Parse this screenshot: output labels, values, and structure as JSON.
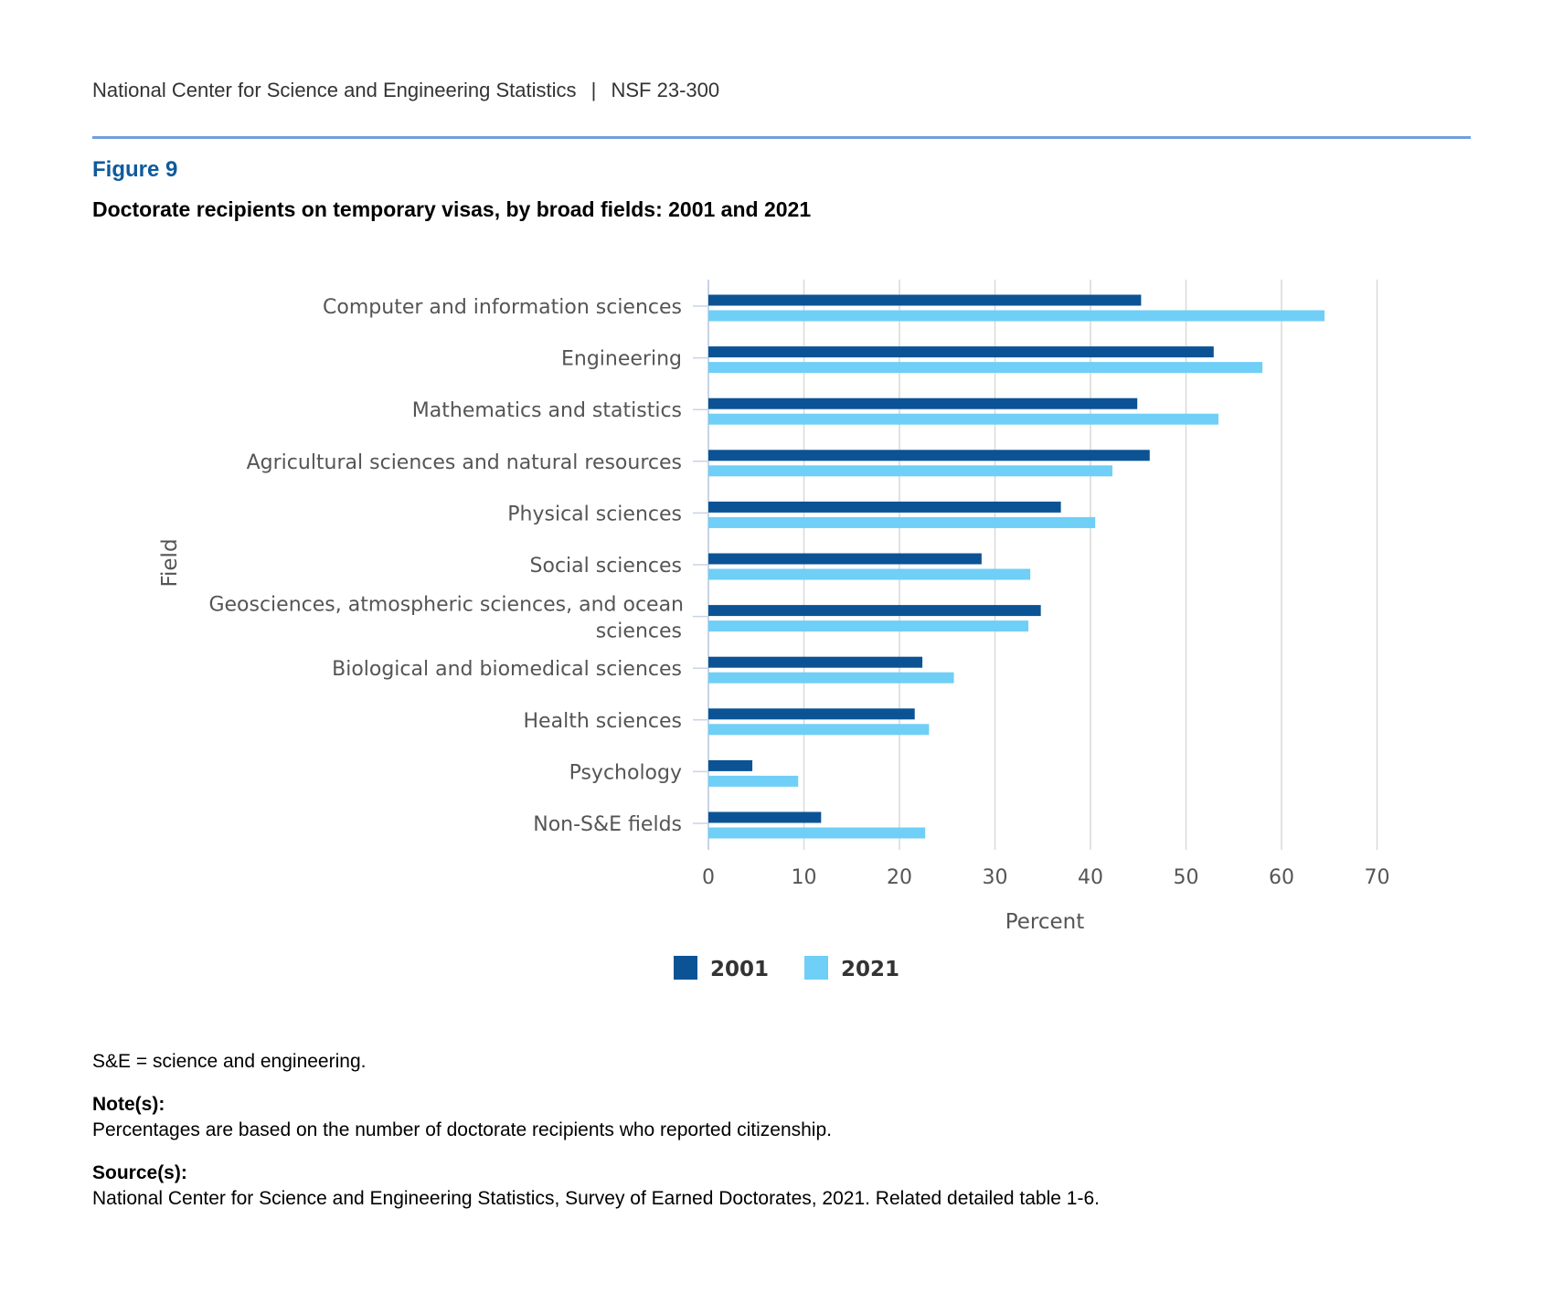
{
  "header": {
    "org": "National Center for Science and Engineering Statistics",
    "separator": "|",
    "doc_id": "NSF 23-300"
  },
  "figure": {
    "label": "Figure 9",
    "title": "Doctorate recipients on temporary visas, by broad fields: 2001 and 2021"
  },
  "colors": {
    "series_2001": "#0b5394",
    "series_2021": "#6fcff6",
    "grid": "#d9d9d9",
    "axis_text": "#555555"
  },
  "chart_data": {
    "type": "bar",
    "orientation": "horizontal",
    "xlabel": "Percent",
    "ylabel": "Field",
    "xlim": [
      0,
      70
    ],
    "xticks": [
      0,
      10,
      20,
      30,
      40,
      50,
      60,
      70
    ],
    "grid": true,
    "legend_position": "bottom-center",
    "categories": [
      "Computer and information sciences",
      "Engineering",
      "Mathematics and statistics",
      "Agricultural sciences and natural resources",
      "Physical sciences",
      "Social sciences",
      "Geosciences, atmospheric sciences, and ocean sciences",
      "Biological and biomedical sciences",
      "Health sciences",
      "Psychology",
      "Non-S&E fields"
    ],
    "series": [
      {
        "name": "2001",
        "values": [
          45.3,
          52.9,
          44.9,
          46.2,
          36.9,
          28.6,
          34.8,
          22.4,
          21.6,
          4.6,
          11.8
        ]
      },
      {
        "name": "2021",
        "values": [
          64.5,
          58.0,
          53.4,
          42.3,
          40.5,
          33.7,
          33.5,
          25.7,
          23.1,
          9.4,
          22.7
        ]
      }
    ]
  },
  "footnotes": {
    "abbrev": "S&E = science and engineering.",
    "note_label": "Note(s):",
    "note_text": "Percentages are based on the number of doctorate recipients who reported citizenship.",
    "source_label": "Source(s):",
    "source_text": "National Center for Science and Engineering Statistics, Survey of Earned Doctorates, 2021. Related detailed table 1-6."
  }
}
